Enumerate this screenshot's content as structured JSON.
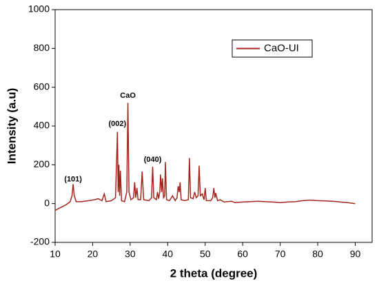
{
  "chart_data": {
    "type": "line",
    "xlabel": "2 theta (degree)",
    "ylabel": "Intensity (a.u)",
    "x": [
      10,
      11,
      12,
      13,
      14,
      14.5,
      14.8,
      15.1,
      15.6,
      17,
      19,
      20.5,
      21.5,
      22.5,
      23.1,
      23.6,
      25,
      26.1,
      26.6,
      26.8,
      27.0,
      27.2,
      27.4,
      27.7,
      28.5,
      29.1,
      29.4,
      29.7,
      30.2,
      30.9,
      31.2,
      31.5,
      31.8,
      32.1,
      32.8,
      33.2,
      33.6,
      35,
      35.7,
      36,
      36.3,
      37,
      37.3,
      37.6,
      37.9,
      38.1,
      38.4,
      38.6,
      38.9,
      39.2,
      39.4,
      39.7,
      40.5,
      41.3,
      42,
      42.5,
      42.8,
      43.1,
      43.3,
      43.6,
      44.5,
      45.5,
      45.8,
      46.1,
      46.8,
      47.2,
      47.6,
      48.1,
      48.4,
      48.7,
      49.2,
      49.7,
      50,
      50.3,
      51.5,
      52,
      52.3,
      52.6,
      52.8,
      53.3,
      54,
      55,
      57,
      58,
      60,
      62,
      64,
      66,
      68,
      70,
      72,
      74,
      76,
      78,
      80,
      82,
      84,
      86,
      88,
      90
    ],
    "series": [
      {
        "name": "CaO-UI",
        "color": "#a3261c",
        "values": [
          -35,
          -25,
          -15,
          -5,
          10,
          40,
          100,
          40,
          10,
          10,
          15,
          20,
          25,
          15,
          50,
          10,
          15,
          30,
          370,
          60,
          200,
          40,
          170,
          15,
          10,
          60,
          520,
          60,
          20,
          30,
          110,
          30,
          80,
          20,
          20,
          165,
          20,
          15,
          30,
          190,
          30,
          20,
          60,
          25,
          60,
          150,
          60,
          130,
          30,
          40,
          215,
          20,
          15,
          40,
          15,
          30,
          90,
          60,
          110,
          20,
          15,
          20,
          235,
          30,
          25,
          60,
          30,
          40,
          195,
          40,
          50,
          20,
          80,
          15,
          15,
          30,
          80,
          30,
          55,
          15,
          20,
          8,
          12,
          5,
          8,
          10,
          12,
          10,
          8,
          5,
          8,
          10,
          15,
          18,
          15,
          14,
          12,
          8,
          5,
          0
        ]
      }
    ],
    "annotations": [
      {
        "text": "(101)",
        "x": 14.8,
        "y": 125
      },
      {
        "text": "(002)",
        "x": 26.6,
        "y": 410
      },
      {
        "text": "CaO",
        "x": 29.4,
        "y": 555
      },
      {
        "text": "(040)",
        "x": 36,
        "y": 225
      }
    ],
    "xlim": [
      10,
      94.5
    ],
    "xticks": [
      10,
      20,
      30,
      40,
      50,
      60,
      70,
      80,
      90
    ],
    "ylim": [
      -200,
      1000
    ],
    "yticks": [
      -200,
      0,
      200,
      400,
      600,
      800,
      1000
    ],
    "legend": "upper right",
    "grid": false
  }
}
